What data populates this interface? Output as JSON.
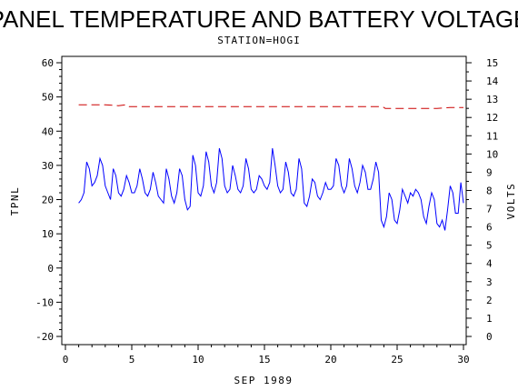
{
  "chart_data": {
    "type": "line",
    "title": "PANEL TEMPERATURE AND BATTERY VOLTAGE",
    "subtitle": "STATION=HOGI",
    "xlabel": "SEP 1989",
    "ylabel_left": "TPNL",
    "ylabel_right": "VOLTS",
    "xlim": [
      0,
      30
    ],
    "ylim_left": [
      -20,
      60
    ],
    "ylim_right": [
      0,
      15
    ],
    "x_ticks": [
      "0",
      "5",
      "10",
      "15",
      "20",
      "25",
      "30"
    ],
    "y_ticks_left": [
      "-20",
      "-10",
      "0",
      "10",
      "20",
      "30",
      "40",
      "50",
      "60"
    ],
    "y_ticks_right": [
      "0",
      "1",
      "2",
      "3",
      "4",
      "5",
      "6",
      "7",
      "8",
      "9",
      "10",
      "11",
      "12",
      "13",
      "14",
      "15"
    ],
    "grid": false,
    "series": [
      {
        "axis": "left",
        "color": "#0000ff",
        "style": "solid",
        "x": [
          1.0,
          1.2,
          1.4,
          1.6,
          1.8,
          2.0,
          2.2,
          2.4,
          2.6,
          2.8,
          3.0,
          3.2,
          3.4,
          3.6,
          3.8,
          4.0,
          4.2,
          4.4,
          4.6,
          4.8,
          5.0,
          5.2,
          5.4,
          5.6,
          5.8,
          6.0,
          6.2,
          6.4,
          6.6,
          6.8,
          7.0,
          7.2,
          7.4,
          7.6,
          7.8,
          8.0,
          8.2,
          8.4,
          8.6,
          8.8,
          9.0,
          9.2,
          9.4,
          9.6,
          9.8,
          10.0,
          10.2,
          10.4,
          10.6,
          10.8,
          11.0,
          11.2,
          11.4,
          11.6,
          11.8,
          12.0,
          12.2,
          12.4,
          12.6,
          12.8,
          13.0,
          13.2,
          13.4,
          13.6,
          13.8,
          14.0,
          14.2,
          14.4,
          14.6,
          14.8,
          15.0,
          15.2,
          15.4,
          15.6,
          15.8,
          16.0,
          16.2,
          16.4,
          16.6,
          16.8,
          17.0,
          17.2,
          17.4,
          17.6,
          17.8,
          18.0,
          18.2,
          18.4,
          18.6,
          18.8,
          19.0,
          19.2,
          19.4,
          19.6,
          19.8,
          20.0,
          20.2,
          20.4,
          20.6,
          20.8,
          21.0,
          21.2,
          21.4,
          21.6,
          21.8,
          22.0,
          22.2,
          22.4,
          22.6,
          22.8,
          23.0,
          23.2,
          23.4,
          23.6,
          23.8,
          24.0,
          24.2,
          24.4,
          24.6,
          24.8,
          25.0,
          25.2,
          25.4,
          25.6,
          25.8,
          26.0,
          26.2,
          26.4,
          26.6,
          26.8,
          27.0,
          27.2,
          27.4,
          27.6,
          27.8,
          28.0,
          28.2,
          28.4,
          28.6,
          28.8,
          29.0,
          29.2,
          29.4,
          29.6,
          29.8,
          30.0
        ],
        "y": [
          19,
          20,
          22,
          31,
          29,
          24,
          25,
          27,
          32,
          30,
          24,
          22,
          20,
          29,
          27,
          22,
          21,
          23,
          27,
          25,
          22,
          22,
          24,
          29,
          26,
          22,
          21,
          23,
          28,
          25,
          21,
          20,
          19,
          29,
          26,
          21,
          19,
          22,
          29,
          27,
          20,
          17,
          18,
          33,
          30,
          22,
          21,
          24,
          34,
          31,
          24,
          22,
          25,
          35,
          32,
          24,
          22,
          23,
          30,
          27,
          23,
          22,
          24,
          32,
          29,
          23,
          22,
          23,
          27,
          26,
          24,
          23,
          25,
          35,
          30,
          24,
          22,
          23,
          31,
          28,
          22,
          21,
          23,
          32,
          29,
          19,
          18,
          21,
          26,
          25,
          21,
          20,
          22,
          25,
          23,
          23,
          24,
          32,
          30,
          24,
          22,
          24,
          32,
          29,
          24,
          22,
          25,
          30,
          28,
          23,
          23,
          26,
          31,
          28,
          14,
          12,
          15,
          22,
          20,
          14,
          13,
          17,
          23,
          21,
          19,
          22,
          21,
          23,
          22,
          20,
          15,
          13,
          18,
          22,
          20,
          13,
          12,
          14,
          11,
          17,
          24,
          22,
          16,
          16,
          25,
          19
        ],
        "name": ""
      },
      {
        "axis": "right",
        "color": "#cc0000",
        "style": "dashed",
        "x": [
          1.0,
          2.0,
          3.0,
          4.0,
          4.6,
          4.8,
          5.0,
          6.0,
          7.0,
          8.0,
          9.0,
          10.0,
          11.0,
          12.0,
          13.0,
          14.0,
          15.0,
          16.0,
          17.0,
          18.0,
          19.0,
          20.0,
          21.0,
          22.0,
          23.0,
          23.9,
          24.1,
          25.0,
          26.0,
          27.0,
          28.0,
          29.0,
          30.0
        ],
        "y": [
          12.7,
          12.7,
          12.7,
          12.65,
          12.7,
          12.6,
          12.6,
          12.6,
          12.6,
          12.6,
          12.6,
          12.6,
          12.6,
          12.6,
          12.6,
          12.6,
          12.6,
          12.6,
          12.6,
          12.6,
          12.6,
          12.6,
          12.6,
          12.6,
          12.6,
          12.6,
          12.5,
          12.5,
          12.5,
          12.5,
          12.5,
          12.55,
          12.55
        ],
        "name": ""
      }
    ]
  }
}
